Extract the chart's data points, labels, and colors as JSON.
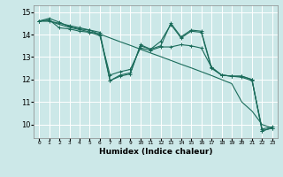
{
  "xlabel": "Humidex (Indice chaleur)",
  "bg_color": "#cce8e8",
  "grid_color": "#ffffff",
  "line_color": "#1a6b5a",
  "xlim": [
    -0.5,
    23.5
  ],
  "ylim": [
    9.4,
    15.3
  ],
  "yticks": [
    10,
    11,
    12,
    13,
    14,
    15
  ],
  "xtick_labels": [
    "0",
    "1",
    "2",
    "3",
    "4",
    "5",
    "6",
    "7",
    "8",
    "9",
    "10",
    "11",
    "12",
    "13",
    "14",
    "15",
    "16",
    "17",
    "18",
    "19",
    "20",
    "21",
    "22",
    "23"
  ],
  "series": [
    [
      14.6,
      14.72,
      14.55,
      14.35,
      14.25,
      14.2,
      14.0,
      11.95,
      12.15,
      12.25,
      13.55,
      13.35,
      13.7,
      14.45,
      13.85,
      14.15,
      14.1,
      12.5,
      12.2,
      12.15,
      12.15,
      12.0,
      9.72,
      9.85
    ],
    [
      14.6,
      14.65,
      14.3,
      14.25,
      14.15,
      14.1,
      13.95,
      12.2,
      12.35,
      12.45,
      13.4,
      13.3,
      13.45,
      13.45,
      13.55,
      13.5,
      13.4,
      12.55,
      12.2,
      12.15,
      12.1,
      11.95,
      9.8,
      9.9
    ],
    [
      14.6,
      14.6,
      14.45,
      14.32,
      14.22,
      14.12,
      14.02,
      13.85,
      13.68,
      13.52,
      13.35,
      13.18,
      13.02,
      12.85,
      12.68,
      12.52,
      12.35,
      12.18,
      12.0,
      11.82,
      11.0,
      10.6,
      10.0,
      9.85
    ],
    [
      14.6,
      14.6,
      14.5,
      14.4,
      14.3,
      14.2,
      14.1,
      11.95,
      12.2,
      12.3,
      13.5,
      13.35,
      13.5,
      14.5,
      13.9,
      14.2,
      14.15,
      12.55,
      12.2,
      12.15,
      12.15,
      12.0,
      9.72,
      9.85
    ]
  ]
}
